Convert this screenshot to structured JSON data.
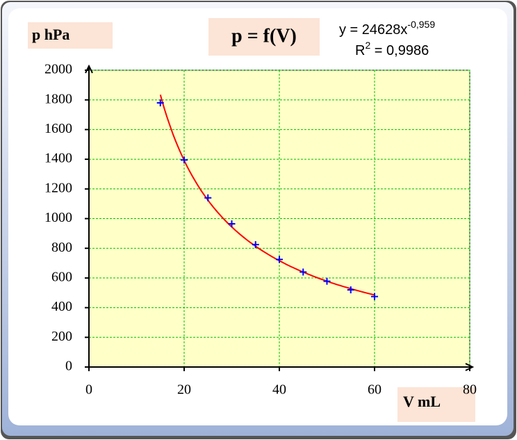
{
  "chart_data": {
    "type": "scatter",
    "title": "p = f(V)",
    "y_label": "p hPa",
    "x_label": "V mL",
    "x": [
      15,
      20,
      25,
      30,
      35,
      40,
      45,
      50,
      55,
      60
    ],
    "values": [
      1780,
      1395,
      1140,
      965,
      825,
      725,
      640,
      578,
      520,
      475
    ],
    "color": "#0000ff",
    "trendline": {
      "type": "power",
      "a": 24628,
      "b": -0.959,
      "color": "#ff0000",
      "equation": "y = 24628x",
      "exponent": "-0,959",
      "r_label": "R",
      "r_power": "2",
      "r_value": " = 0,9986"
    },
    "xlim": [
      0,
      80
    ],
    "xticks": [
      0,
      20,
      40,
      60,
      80
    ],
    "ylim": [
      0,
      2000
    ],
    "yticks": [
      0,
      200,
      400,
      600,
      800,
      1000,
      1200,
      1400,
      1600,
      1800,
      2000
    ],
    "grid": true,
    "grid_color": "#00c000",
    "plot_background": "#ffffc8"
  }
}
